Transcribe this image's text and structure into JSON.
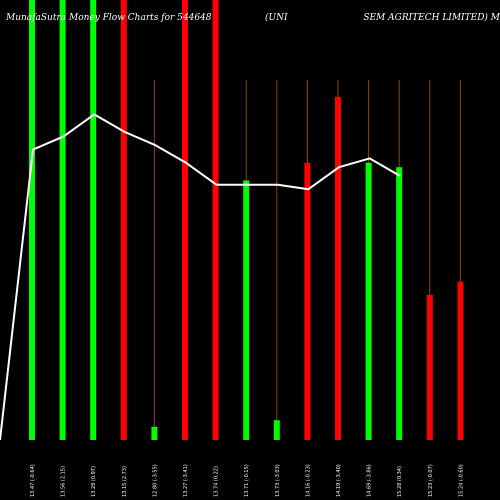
{
  "chart_data": {
    "type": "bar",
    "title_left": "MunafaSutra Money Flow Charts for 544648",
    "title_mid": "(UNI",
    "title_right": "SEM AGRITECH LIMITED) M",
    "categories": [
      "13.47 (-0.64)",
      "13.56 (2.15)",
      "13.28 (0.97)",
      "13.15 (2.73)",
      "12.80 (-3.55)",
      "13.27 (-3.41)",
      "13.74 (0.22)",
      "13.71 (-0.15)",
      "13.73 (-3.03)",
      "14.16 (-0.23)",
      "14.19 (-3.40)",
      "14.69 (-3.86)",
      "15.28 (0.34)",
      "15.23 (-0.07)",
      "15.24 (-0.60)"
    ],
    "bars": [
      {
        "value": 100,
        "color": "green"
      },
      {
        "value": 100,
        "color": "green"
      },
      {
        "value": 100,
        "color": "green"
      },
      {
        "value": 100,
        "color": "red"
      },
      {
        "value": 3,
        "color": "green"
      },
      {
        "value": 100,
        "color": "red"
      },
      {
        "value": 100,
        "color": "red"
      },
      {
        "value": 59,
        "color": "green"
      },
      {
        "value": 4.5,
        "color": "green"
      },
      {
        "value": 63,
        "color": "red"
      },
      {
        "value": 78,
        "color": "red"
      },
      {
        "value": 63,
        "color": "green"
      },
      {
        "value": 62,
        "color": "green"
      },
      {
        "value": 33,
        "color": "red"
      },
      {
        "value": 36,
        "color": "red"
      }
    ],
    "line": [
      66,
      69,
      74,
      70,
      67,
      63,
      58,
      58,
      58,
      57,
      62,
      64,
      60
    ],
    "line_start": 0,
    "ylim": [
      0,
      100
    ],
    "colors": {
      "green": "#00ff00",
      "red": "#ff0000",
      "line": "#ffffff",
      "guide": "#8a4b00",
      "background": "#000000"
    },
    "grid": false
  }
}
